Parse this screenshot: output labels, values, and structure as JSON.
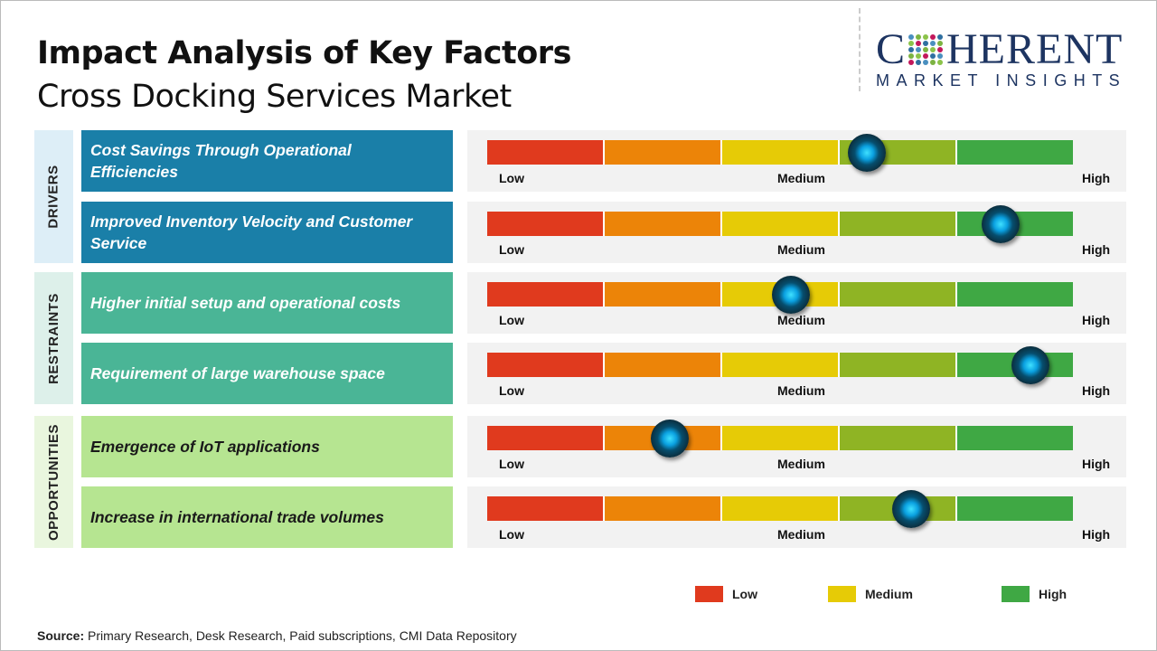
{
  "header": {
    "title": "Impact Analysis of Key Factors",
    "subtitle": "Cross Docking Services Market"
  },
  "logo": {
    "brand_pre": "C",
    "brand_post": "HERENT",
    "tagline": "MARKET INSIGHTS"
  },
  "colors": {
    "low": "#e03a1e",
    "mid_low": "#ec8408",
    "medium": "#e6cb06",
    "mid_high": "#8fb424",
    "high": "#3fa844",
    "drivers": "#1a7fa8",
    "restraints": "#4ab596",
    "opportunities": "#b6e591"
  },
  "scale_labels": {
    "low": "Low",
    "medium": "Medium",
    "high": "High"
  },
  "categories": [
    {
      "label": "DRIVERS",
      "factors": [
        {
          "text": "Cost Savings Through Operational Efficiencies",
          "impact": 0.648
        },
        {
          "text": "Improved Inventory Velocity and Customer Service",
          "impact": 0.877
        }
      ]
    },
    {
      "label": "RESTRAINTS",
      "factors": [
        {
          "text": "Higher initial setup and operational  costs",
          "impact": 0.519
        },
        {
          "text": "Requirement  of large warehouse space",
          "impact": 0.927
        }
      ]
    },
    {
      "label": "OPPORTUNITIES",
      "factors": [
        {
          "text": "Emergence  of IoT applications",
          "impact": 0.312
        },
        {
          "text": "Increase  in international  trade volumes",
          "impact": 0.724
        }
      ]
    }
  ],
  "legend": [
    {
      "label": "Low",
      "color": "#e03a1e"
    },
    {
      "label": "Medium",
      "color": "#e6cb06"
    },
    {
      "label": "High",
      "color": "#3fa844"
    }
  ],
  "source": {
    "label": "Source:",
    "text": " Primary Research, Desk Research, Paid subscriptions, CMI Data Repository"
  }
}
